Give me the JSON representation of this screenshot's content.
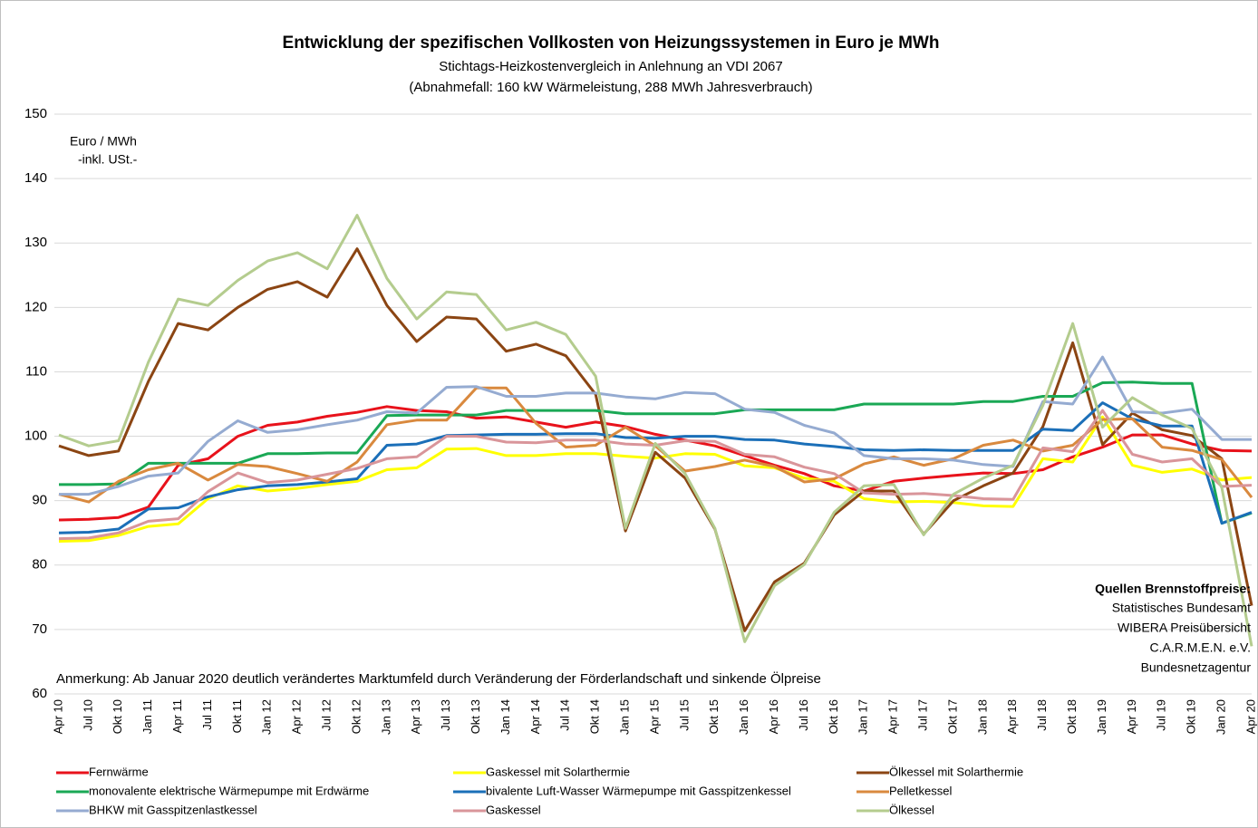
{
  "chart_data": {
    "type": "line",
    "title": "Entwicklung der spezifischen Vollkosten von Heizungssystemen in Euro je MWh",
    "subtitle": [
      "Stichtags-Heizkostenvergleich in Anlehnung an VDI 2067",
      "(Abnahmefall: 160 kW Wärmeleistung, 288 MWh Jahresverbrauch)"
    ],
    "y_label": [
      "Euro / MWh",
      "-inkl. USt.-"
    ],
    "annotation": "Anmerkung: Ab Januar 2020 deutlich verändertes Marktumfeld durch Veränderung der Förderlandschaft und sinkende Ölpreise",
    "sources_title": "Quellen Brennstoffpreise:",
    "sources": [
      "Statistisches Bundesamt",
      "WIBERA Preisübersicht",
      "C.A.R.M.E.N. e.V.",
      "Bundesnetzagentur"
    ],
    "categories": [
      "Apr 10",
      "Jul 10",
      "Okt 10",
      "Jan 11",
      "Apr 11",
      "Jul 11",
      "Okt 11",
      "Jan 12",
      "Apr 12",
      "Jul 12",
      "Okt 12",
      "Jan 13",
      "Apr 13",
      "Jul 13",
      "Okt 13",
      "Jan 14",
      "Apr 14",
      "Jul 14",
      "Okt 14",
      "Jan 15",
      "Apr 15",
      "Jul 15",
      "Okt 15",
      "Jan 16",
      "Apr 16",
      "Jul 16",
      "Okt 16",
      "Jan 17",
      "Apr 17",
      "Jul 17",
      "Okt 17",
      "Jan 18",
      "Apr 18",
      "Jul 18",
      "Okt 18",
      "Jan 19",
      "Apr 19",
      "Jul 19",
      "Okt 19",
      "Jan 20",
      "Apr 20"
    ],
    "ylim": [
      60,
      150
    ],
    "yticks": [
      60,
      70,
      80,
      90,
      100,
      110,
      120,
      130,
      140,
      150
    ],
    "grid": true,
    "series": [
      {
        "name": "Fernwärme",
        "color": "#e8121b",
        "values": [
          87,
          87.1,
          87.4,
          89,
          95.5,
          96.5,
          100,
          101.7,
          102.2,
          103.1,
          103.7,
          104.6,
          104,
          103.8,
          102.8,
          103,
          102.2,
          101.4,
          102.2,
          101.5,
          100.3,
          99.4,
          98.5,
          97,
          95.5,
          94.2,
          92.3,
          91.5,
          93,
          93.5,
          93.9,
          94.3,
          94.2,
          94.8,
          96.8,
          98.3,
          100.2,
          100.2,
          98.8,
          97.8,
          97.7
        ]
      },
      {
        "name": "Gaskessel mit Solarthermie",
        "color": "#ffff00",
        "values": [
          83.7,
          83.8,
          84.6,
          86,
          86.4,
          90.3,
          92.3,
          91.5,
          91.9,
          92.5,
          93,
          94.8,
          95.1,
          98,
          98.1,
          97,
          97,
          97.3,
          97.3,
          96.9,
          96.6,
          97.3,
          97.2,
          95.4,
          95.1,
          93.5,
          93,
          90.3,
          89.8,
          89.9,
          89.7,
          89.2,
          89.1,
          96.5,
          96,
          103,
          95.5,
          94.4,
          94.9,
          93.2,
          93.6
        ]
      },
      {
        "name": "Ölkessel mit Solarthermie",
        "color": "#8b4513",
        "values": [
          98.5,
          97,
          97.7,
          108.5,
          117.5,
          116.5,
          120,
          122.8,
          124,
          121.6,
          129.1,
          120.3,
          114.7,
          118.5,
          118.2,
          113.2,
          114.3,
          112.5,
          106.5,
          85.3,
          97.5,
          93.5,
          85.6,
          69.8,
          77.4,
          80.3,
          87.8,
          91.5,
          91.5,
          84.8,
          90,
          92.3,
          94.3,
          101.5,
          114.5,
          98.7,
          103.6,
          101,
          100.1,
          96.5,
          73.7
        ]
      },
      {
        "name": "monovalente elektrische Wärmepumpe mit Erdwärme",
        "color": "#1aa855",
        "values": [
          92.5,
          92.5,
          92.6,
          95.8,
          95.8,
          95.8,
          95.8,
          97.3,
          97.3,
          97.4,
          97.4,
          103.2,
          103.3,
          103.3,
          103.3,
          104,
          104,
          104,
          104,
          103.5,
          103.5,
          103.5,
          103.5,
          104.1,
          104.1,
          104.1,
          104.1,
          105,
          105,
          105,
          105,
          105.4,
          105.4,
          106.2,
          106.2,
          108.3,
          108.4,
          108.2,
          108.2,
          86.5,
          88.1
        ]
      },
      {
        "name": "bivalente Luft-Wasser Wärmepumpe mit Gasspitzenkessel",
        "color": "#1b6fb8",
        "values": [
          85,
          85.1,
          85.6,
          88.7,
          88.9,
          90.6,
          91.7,
          92.3,
          92.5,
          92.9,
          93.4,
          98.6,
          98.8,
          100.1,
          100.2,
          100.3,
          100.3,
          100.4,
          100.4,
          99.8,
          99.7,
          100,
          100,
          99.5,
          99.4,
          98.8,
          98.4,
          97.9,
          97.8,
          97.9,
          97.8,
          97.8,
          97.8,
          101.1,
          100.9,
          105.2,
          102.7,
          101.6,
          101.6,
          86.5,
          88.2
        ]
      },
      {
        "name": "Pelletkessel",
        "color": "#d9893e",
        "values": [
          91,
          89.8,
          93,
          94.8,
          95.8,
          93.2,
          95.6,
          95.3,
          94.2,
          93,
          96,
          101.8,
          102.5,
          102.5,
          107.5,
          107.5,
          102,
          98.3,
          98.6,
          101.4,
          98.5,
          94.6,
          95.3,
          96.3,
          95.3,
          92.9,
          93.4,
          95.7,
          96.8,
          95.5,
          96.5,
          98.6,
          99.4,
          97.7,
          98.6,
          102.6,
          102.7,
          98.3,
          97.8,
          96.4,
          90.5
        ]
      },
      {
        "name": "BHKW mit Gasspitzenlastkessel",
        "color": "#95abd1",
        "values": [
          91,
          91,
          92.2,
          93.8,
          94.3,
          99.2,
          102.4,
          100.6,
          101,
          101.8,
          102.5,
          103.8,
          103.6,
          107.6,
          107.7,
          106.2,
          106.2,
          106.7,
          106.7,
          106.1,
          105.8,
          106.8,
          106.6,
          104.2,
          103.7,
          101.7,
          100.5,
          97,
          96.5,
          96.5,
          96.3,
          95.6,
          95.3,
          105.4,
          105,
          112.3,
          103.8,
          103.6,
          104.2,
          99.5,
          99.5
        ]
      },
      {
        "name": "Gaskessel",
        "color": "#d9959a",
        "values": [
          84.1,
          84.2,
          85,
          86.8,
          87.2,
          91.4,
          94.3,
          92.8,
          93.2,
          94.1,
          95,
          96.5,
          96.8,
          100,
          100,
          99.1,
          99,
          99.4,
          99.4,
          98.8,
          98.6,
          99.3,
          99.2,
          97.2,
          96.8,
          95.2,
          94.2,
          91.2,
          91,
          91.1,
          90.8,
          90.3,
          90.2,
          98.2,
          97.6,
          104,
          97.2,
          96,
          96.5,
          92.2,
          92.4
        ]
      },
      {
        "name": "Ölkessel",
        "color": "#b4cc8e",
        "values": [
          100.2,
          98.5,
          99.3,
          111.5,
          121.3,
          120.3,
          124.2,
          127.2,
          128.5,
          126,
          134.3,
          124.5,
          118.2,
          122.4,
          122,
          116.5,
          117.7,
          115.8,
          109.3,
          85.7,
          98.9,
          94.2,
          85.7,
          68.1,
          76.8,
          80.1,
          88.2,
          92.3,
          92.5,
          84.7,
          91,
          93.5,
          95.5,
          104.8,
          117.5,
          101.4,
          106,
          103.3,
          101.2,
          92,
          67.4
        ]
      }
    ]
  }
}
